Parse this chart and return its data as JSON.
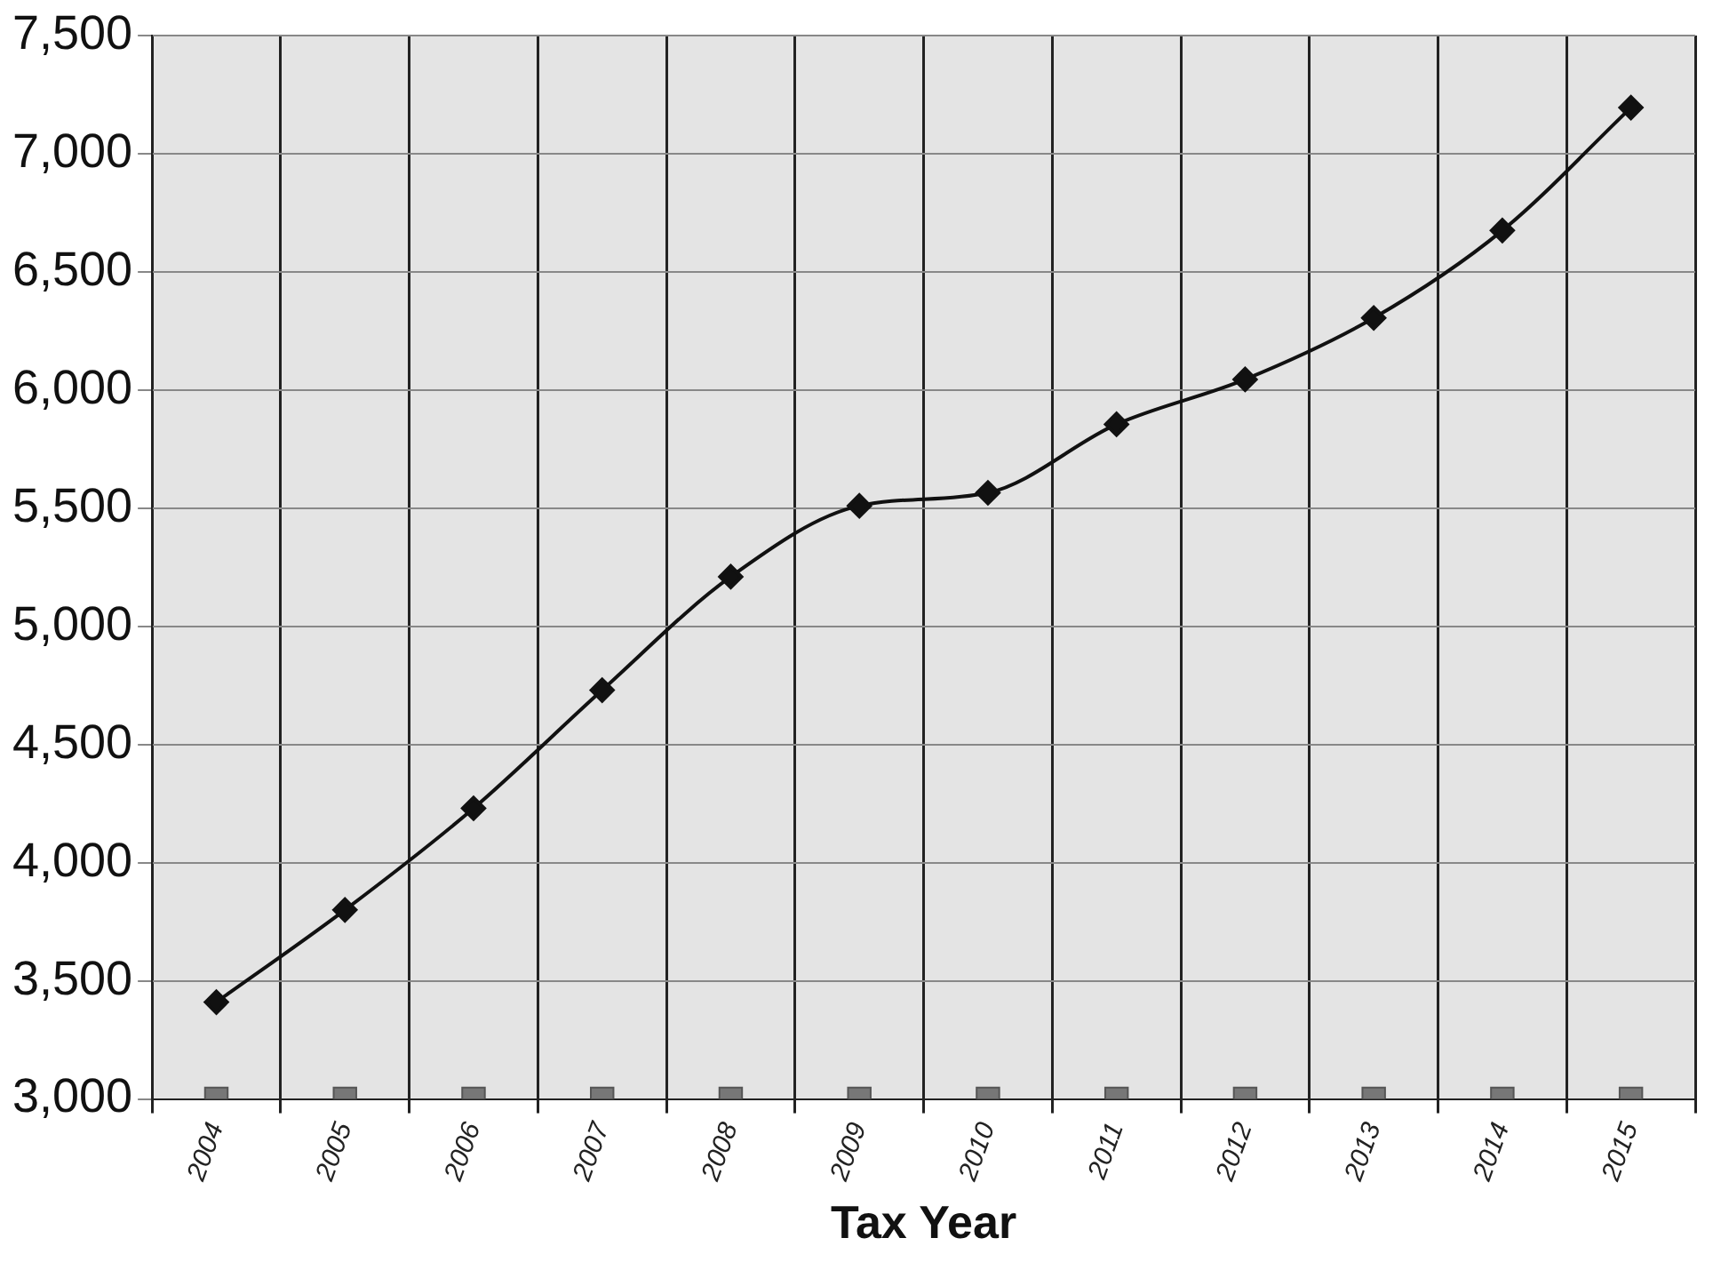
{
  "chart_data": {
    "type": "line",
    "xlabel": "Tax Year",
    "categories": [
      "2004",
      "2005",
      "2006",
      "2007",
      "2008",
      "2009",
      "2010",
      "2011",
      "2012",
      "2013",
      "2014",
      "2015"
    ],
    "series": [
      {
        "color": "#111111",
        "marker": "diamond",
        "values": [
          3410,
          3800,
          4230,
          4730,
          5210,
          5510,
          5565,
          5855,
          6045,
          6305,
          6675,
          7195
        ]
      },
      {
        "type": "scatter",
        "color": "#777777",
        "marker": "square",
        "values": [
          3000,
          3000,
          3000,
          3000,
          3000,
          3000,
          3000,
          3000,
          3000,
          3000,
          3000,
          3000
        ]
      }
    ],
    "ylim": [
      3000,
      7500
    ],
    "yticks": [
      {
        "value": 3000,
        "label": "3,000"
      },
      {
        "value": 3500,
        "label": "3,500"
      },
      {
        "value": 4000,
        "label": "4,000"
      },
      {
        "value": 4500,
        "label": "4,500"
      },
      {
        "value": 5000,
        "label": "5,000"
      },
      {
        "value": 5500,
        "label": "5,500"
      },
      {
        "value": 6000,
        "label": "6,000"
      },
      {
        "value": 6500,
        "label": "6,500"
      },
      {
        "value": 7000,
        "label": "7,000"
      },
      {
        "value": 7500,
        "label": "7,500"
      }
    ],
    "grid": true,
    "legend": false
  }
}
